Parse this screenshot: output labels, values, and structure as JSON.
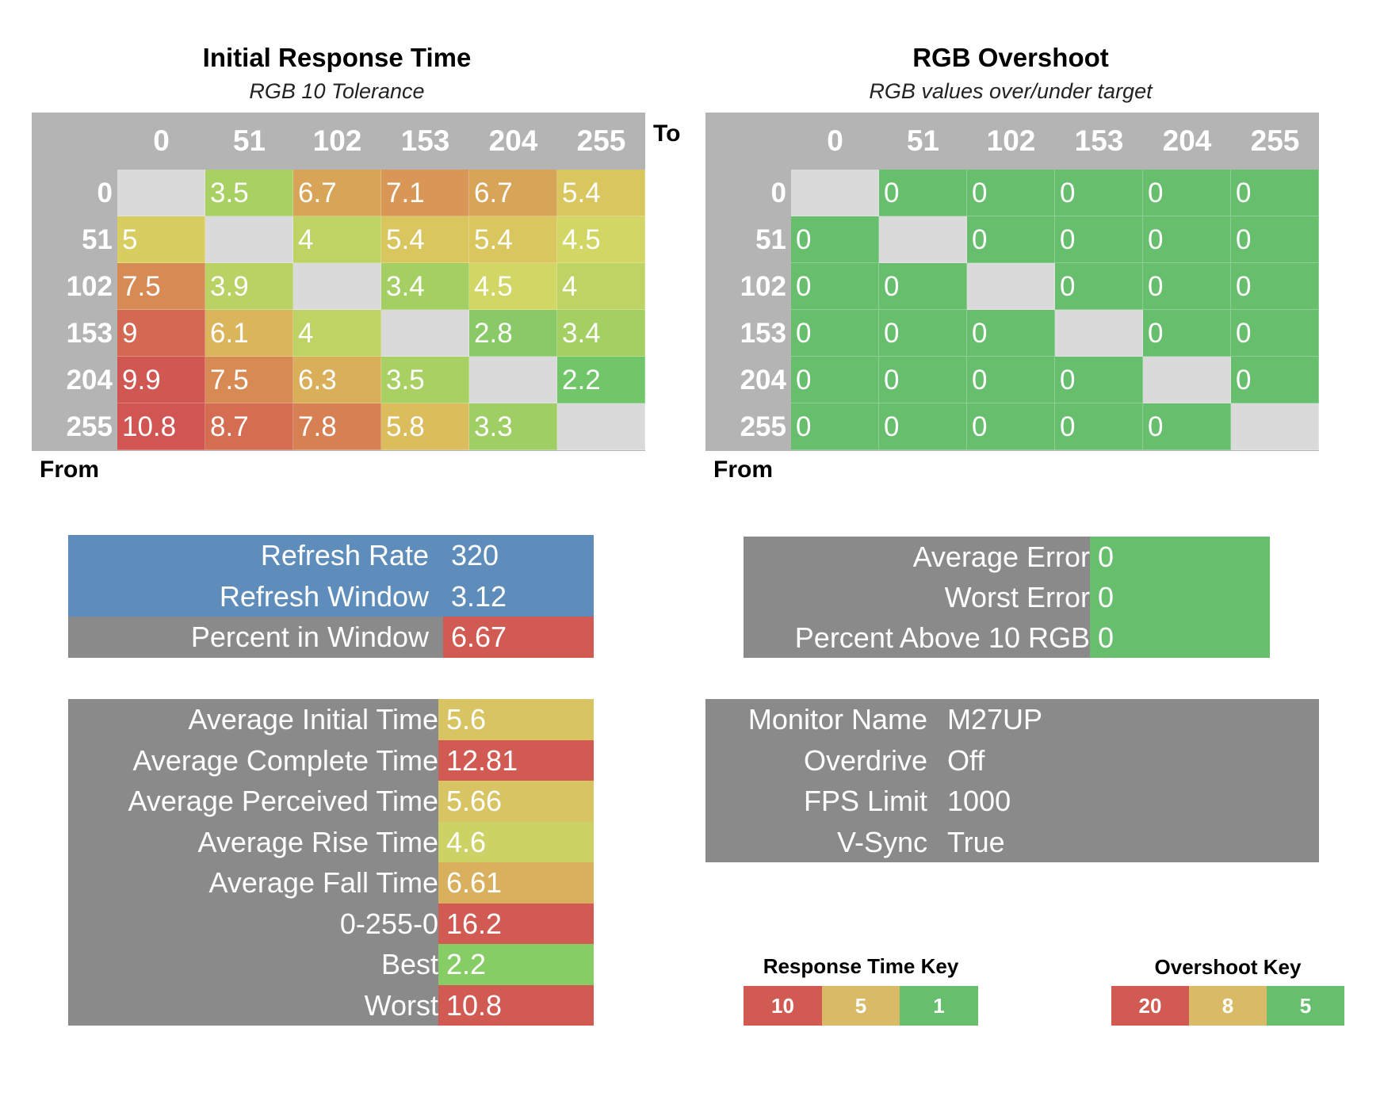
{
  "colors": {
    "grey_header": "#b4b4b4",
    "grey_panel": "#8a8a8a",
    "blue": "#5f8dbb",
    "red": "#d15a52",
    "tan": "#d9bb67",
    "green": "#67bf6e",
    "diagonal": "#dadada"
  },
  "chart_data": [
    {
      "type": "heatmap",
      "title": "Initial Response Time",
      "subtitle": "RGB 10 Tolerance",
      "to_label": "To",
      "from_label": "From",
      "x_labels": [
        "0",
        "51",
        "102",
        "153",
        "204",
        "255"
      ],
      "y_labels": [
        "0",
        "51",
        "102",
        "153",
        "204",
        "255"
      ],
      "values": [
        [
          null,
          3.5,
          6.7,
          7.1,
          6.7,
          5.4
        ],
        [
          5,
          null,
          4,
          5.4,
          5.4,
          4.5
        ],
        [
          7.5,
          3.9,
          null,
          3.4,
          4.5,
          4
        ],
        [
          9,
          6.1,
          4,
          null,
          2.8,
          3.4
        ],
        [
          9.9,
          7.5,
          6.3,
          3.5,
          null,
          2.2
        ],
        [
          10.8,
          8.7,
          7.8,
          5.8,
          3.3,
          null
        ]
      ],
      "color_key": {
        "high": 10,
        "mid": 5,
        "low": 1
      }
    },
    {
      "type": "heatmap",
      "title": "RGB Overshoot",
      "subtitle": "RGB values over/under target",
      "from_label": "From",
      "x_labels": [
        "0",
        "51",
        "102",
        "153",
        "204",
        "255"
      ],
      "y_labels": [
        "0",
        "51",
        "102",
        "153",
        "204",
        "255"
      ],
      "values": [
        [
          null,
          0,
          0,
          0,
          0,
          0
        ],
        [
          0,
          null,
          0,
          0,
          0,
          0
        ],
        [
          0,
          0,
          null,
          0,
          0,
          0
        ],
        [
          0,
          0,
          0,
          null,
          0,
          0
        ],
        [
          0,
          0,
          0,
          0,
          null,
          0
        ],
        [
          0,
          0,
          0,
          0,
          0,
          null
        ]
      ],
      "color_key": {
        "high": 20,
        "mid": 8,
        "low": 5
      }
    }
  ],
  "refresh_panel": [
    {
      "label": "Refresh Rate",
      "value": "320",
      "row_color": "blue",
      "value_color": "blue"
    },
    {
      "label": "Refresh Window",
      "value": "3.12",
      "row_color": "blue",
      "value_color": "blue"
    },
    {
      "label": "Percent in Window",
      "value": "6.67",
      "row_color": "grey",
      "value_color": "red"
    }
  ],
  "error_panel": [
    {
      "label": "Average Error",
      "value": "0"
    },
    {
      "label": "Worst Error",
      "value": "0"
    },
    {
      "label": "Percent Above 10 RGB",
      "value": "0"
    }
  ],
  "stats_panel": [
    {
      "label": "Average Initial Time",
      "value": "5.6",
      "value_color": "#d9c463"
    },
    {
      "label": "Average Complete Time",
      "value": "12.81",
      "value_color": "#d15a52"
    },
    {
      "label": "Average Perceived Time",
      "value": "5.66",
      "value_color": "#d9c463"
    },
    {
      "label": "Average Rise Time",
      "value": "4.6",
      "value_color": "#cdd266"
    },
    {
      "label": "Average Fall Time",
      "value": "6.61",
      "value_color": "#d9b15e"
    },
    {
      "label": "0-255-0",
      "value": "16.2",
      "value_color": "#d15a52"
    },
    {
      "label": "Best",
      "value": "2.2",
      "value_color": "#87cd66"
    },
    {
      "label": "Worst",
      "value": "10.8",
      "value_color": "#d15a52"
    }
  ],
  "monitor_panel": [
    {
      "label": "Monitor Name",
      "value": "M27UP"
    },
    {
      "label": "Overdrive",
      "value": "Off"
    },
    {
      "label": "FPS Limit",
      "value": "1000"
    },
    {
      "label": "V-Sync",
      "value": "True"
    }
  ],
  "response_key": {
    "title": "Response Time Key",
    "items": [
      "10",
      "5",
      "1"
    ]
  },
  "overshoot_key": {
    "title": "Overshoot Key",
    "items": [
      "20",
      "8",
      "5"
    ]
  }
}
